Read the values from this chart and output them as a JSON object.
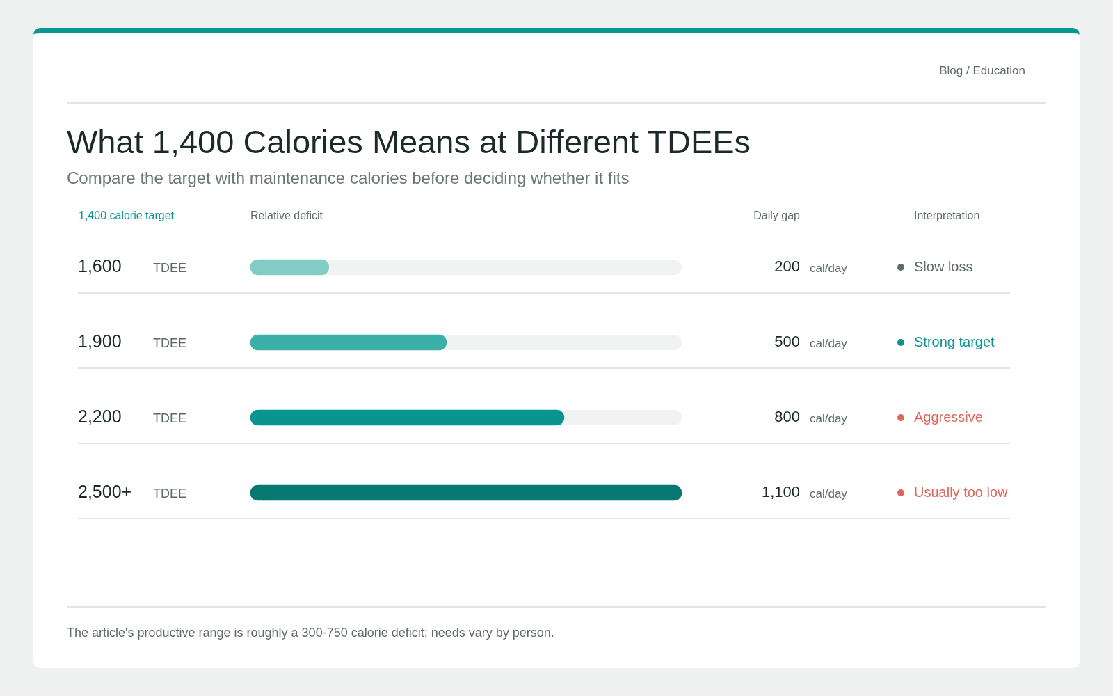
{
  "chart_data": {
    "type": "bar",
    "orientation": "horizontal",
    "title": "What 1,400 Calories Means at Different TDEEs",
    "subtitle": "Compare the target with maintenance calories before deciding whether it fits",
    "categories": [
      "1,600 TDEE",
      "1,900 TDEE",
      "2,200 TDEE",
      "2,500+ TDEE"
    ],
    "values": [
      200,
      500,
      800,
      1100
    ],
    "value_labels": [
      "200 cal/day",
      "500 cal/day",
      "800 cal/day",
      "1,100 cal/day"
    ],
    "colors": [
      "#82ccc6",
      "#3bb0a8",
      "#08948f",
      "#077872"
    ],
    "legend": false,
    "annotations": [
      "Blog / Education",
      "1,400 calorie target",
      "Relative deficit",
      "Daily gap",
      "Interpretation",
      "Slow loss",
      "Strong target",
      "Aggressive",
      "Usually too low",
      "The article's productive range is roughly a 300-750 calorie deficit; needs vary by person."
    ]
  }
}
